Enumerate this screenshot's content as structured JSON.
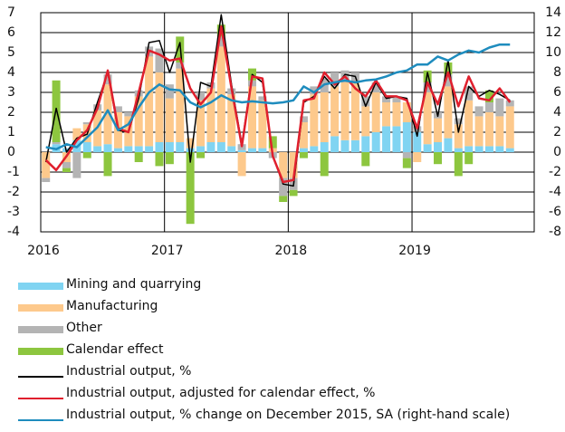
{
  "chart_data": {
    "type": "bar",
    "categories": [
      "2016",
      null,
      null,
      null,
      null,
      null,
      null,
      null,
      null,
      null,
      null,
      null,
      "2017",
      null,
      null,
      null,
      null,
      null,
      null,
      null,
      null,
      null,
      null,
      null,
      "2018",
      null,
      null,
      null,
      null,
      null,
      null,
      null,
      null,
      null,
      null,
      null,
      "2019",
      null,
      null,
      null,
      null,
      null,
      null,
      null,
      null,
      null
    ],
    "ylim": [
      -4,
      7
    ],
    "yticks": [
      -4,
      -3,
      -2,
      -1,
      0,
      1,
      2,
      3,
      4,
      5,
      6,
      7
    ],
    "y2lim": [
      -8,
      14
    ],
    "y2ticks": [
      -8,
      -6,
      -4,
      -2,
      0,
      2,
      4,
      6,
      8,
      10,
      12,
      14
    ],
    "grid": true,
    "series": [
      {
        "name": "Mining and quarrying",
        "type": "bar",
        "color": "#80d4f2",
        "values": [
          0,
          0.4,
          0.2,
          0.6,
          0.5,
          0.3,
          0.4,
          0.2,
          0.3,
          0.3,
          0.3,
          0.5,
          0.5,
          0.5,
          0.2,
          0.3,
          0.5,
          0.5,
          0.3,
          0.1,
          0.2,
          0.2,
          0,
          0,
          0,
          0.2,
          0.3,
          0.5,
          0.8,
          0.6,
          0.6,
          0.8,
          1.0,
          1.3,
          1.3,
          1.5,
          1.0,
          0.4,
          0.5,
          0.7,
          0.2,
          0.3,
          0.3,
          0.3,
          0.3,
          0.2
        ]
      },
      {
        "name": "Manufacturing",
        "type": "bar",
        "color": "#fdc98c",
        "values": [
          -1.3,
          0,
          -0.5,
          0.6,
          0.9,
          1.8,
          3.0,
          1.8,
          1.5,
          2.5,
          4.5,
          3.5,
          2.2,
          3.7,
          0.5,
          2.3,
          2.7,
          4.8,
          2.6,
          -1.2,
          3.1,
          2.4,
          0.2,
          -1.3,
          -1.3,
          1.3,
          2.6,
          2.5,
          2.5,
          2.9,
          2.9,
          1.5,
          2.0,
          1.2,
          1.2,
          1.0,
          -0.5,
          2.6,
          1.2,
          2.6,
          1.2,
          2.3,
          1.5,
          1.7,
          1.5,
          2.1
        ]
      },
      {
        "name": "Other",
        "type": "bar",
        "color": "#b4b4b4",
        "values": [
          -0.2,
          0.1,
          -0.3,
          -1.3,
          0.1,
          0.3,
          0.5,
          0.3,
          0.2,
          0.3,
          0.5,
          1.2,
          0.7,
          0.3,
          0,
          0.4,
          0.3,
          0.5,
          0.3,
          0.3,
          0.3,
          0.2,
          -0.3,
          -0.9,
          -0.6,
          0.3,
          0.4,
          0.7,
          0.7,
          0.6,
          0.5,
          0.5,
          0.5,
          0.3,
          0.3,
          -0.3,
          0.3,
          0.5,
          0.3,
          0.6,
          0.3,
          0.7,
          0.5,
          0.5,
          0.9,
          0.3
        ]
      },
      {
        "name": "Calendar effect",
        "type": "bar",
        "color": "#8dc63f",
        "values": [
          0,
          3.1,
          -0.2,
          0,
          -0.3,
          0,
          -1.2,
          0,
          0,
          -0.5,
          0,
          -0.7,
          -0.6,
          1.3,
          -3.6,
          -0.3,
          0,
          0.6,
          0,
          0,
          0.6,
          0,
          0.6,
          -0.3,
          -0.3,
          -0.3,
          0,
          -1.2,
          0,
          0,
          0,
          -0.7,
          0,
          0,
          0,
          -0.5,
          0,
          0.6,
          -0.6,
          0.6,
          -1.2,
          -0.6,
          0,
          0.6,
          0,
          0
        ]
      },
      {
        "name": "Industrial output, %",
        "type": "line",
        "color": "#000000",
        "values": [
          -0.5,
          2.2,
          0,
          0.7,
          0.9,
          2.5,
          4.0,
          1.1,
          1.0,
          2.7,
          5.5,
          5.6,
          4.0,
          5.5,
          -0.5,
          3.5,
          3.3,
          6.9,
          3.4,
          0.4,
          3.9,
          3.5,
          -0.2,
          -1.6,
          -1.7,
          2.5,
          2.8,
          3.8,
          3.2,
          3.9,
          3.8,
          2.3,
          3.5,
          2.7,
          2.8,
          2.7,
          0.8,
          4.0,
          1.8,
          4.6,
          1.0,
          3.3,
          2.8,
          3.1,
          2.9,
          2.6
        ]
      },
      {
        "name": "Industrial output, adjusted for calendar effect, %",
        "type": "line",
        "color": "#e01f2d",
        "values": [
          -0.4,
          -0.9,
          -0.2,
          0.6,
          1.1,
          2.2,
          4.1,
          1.2,
          1.0,
          3.0,
          5.1,
          4.9,
          4.6,
          4.7,
          3.2,
          2.4,
          3.0,
          6.3,
          3.2,
          0.3,
          3.8,
          3.7,
          -0.2,
          -1.5,
          -1.4,
          2.6,
          2.7,
          4.0,
          3.4,
          3.8,
          3.2,
          2.8,
          3.6,
          2.8,
          2.8,
          2.6,
          1.2,
          3.5,
          2.4,
          4.0,
          2.3,
          3.8,
          2.7,
          2.6,
          3.2,
          2.5
        ]
      },
      {
        "name": "Industrial output, % change on December 2015, SA (right-hand scale)",
        "type": "line",
        "axis": "y2",
        "color": "#1e8cbe",
        "values": [
          0.5,
          0.3,
          0.8,
          0.5,
          1.5,
          2.5,
          4.2,
          2.2,
          2.8,
          4.5,
          6.0,
          6.8,
          6.3,
          6.2,
          5.0,
          4.5,
          5.0,
          5.7,
          5.2,
          5.0,
          5.1,
          5.0,
          4.9,
          5.0,
          5.2,
          6.6,
          6.0,
          6.8,
          7.0,
          7.2,
          7.0,
          7.2,
          7.3,
          7.6,
          8.0,
          8.2,
          8.8,
          8.8,
          9.6,
          9.2,
          9.8,
          10.2,
          10.0,
          10.5,
          10.8,
          10.8
        ]
      }
    ]
  }
}
